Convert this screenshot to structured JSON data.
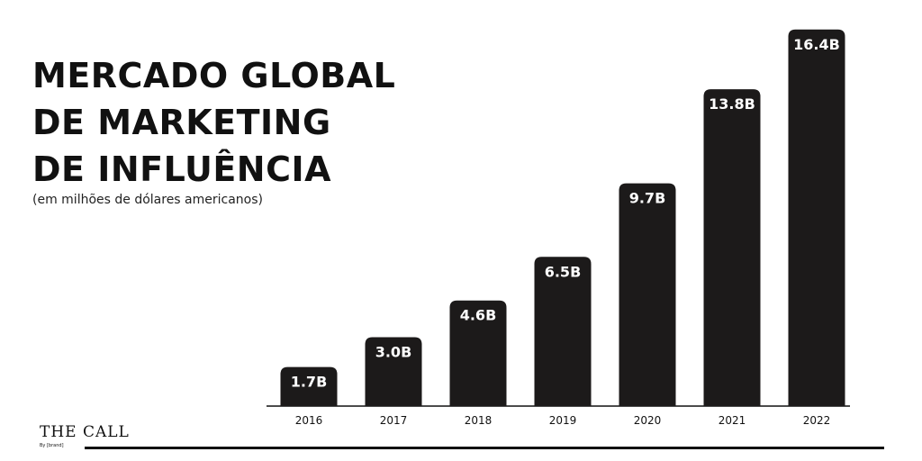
{
  "title_lines": [
    "MERCADO GLOBAL",
    "DE MARKETING",
    "DE INFLUÊNCIA"
  ],
  "subtitle": "(em milhões de dólares americanos)",
  "brand": {
    "name": "THE CALL",
    "byline": "By [brand]"
  },
  "colors": {
    "bar": "#1c1a1a",
    "gridline": "#d9363e",
    "text": "#111111",
    "bar_text": "#ffffff"
  },
  "chart_data": {
    "type": "bar",
    "categories": [
      "2016",
      "2017",
      "2018",
      "2019",
      "2020",
      "2021",
      "2022"
    ],
    "values": [
      1.7,
      3.0,
      4.6,
      6.5,
      9.7,
      13.8,
      16.4
    ],
    "data_labels": [
      "1.7B",
      "3.0B",
      "4.6B",
      "6.5B",
      "9.7B",
      "13.8B",
      "16.4B"
    ],
    "title": "MERCADO GLOBAL DE MARKETING DE INFLUÊNCIA",
    "subtitle": "(em milhões de dólares americanos)",
    "xlabel": "",
    "ylabel": "",
    "ylim": [
      0,
      17
    ],
    "grid": true,
    "legend": "none"
  }
}
